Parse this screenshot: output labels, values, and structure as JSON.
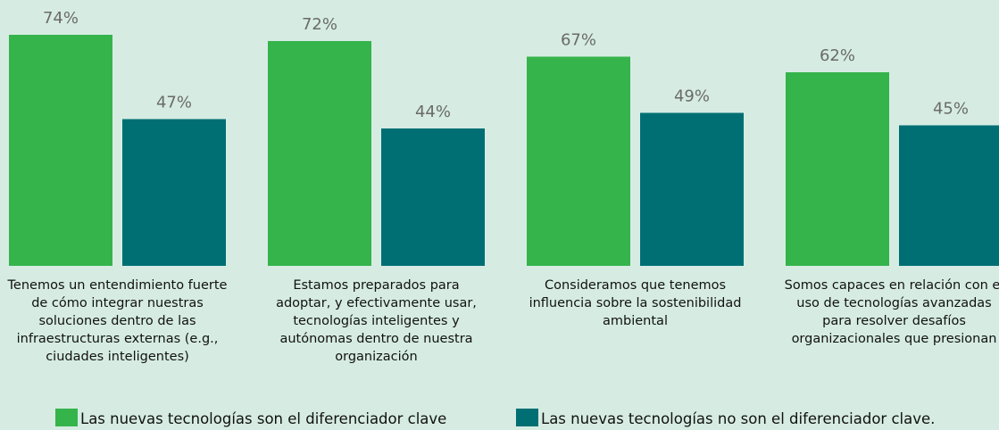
{
  "chart_data": {
    "type": "bar",
    "categories": [
      "Tenemos un entendimiento fuerte de cómo integrar nuestras soluciones dentro de las infraestructuras externas (e.g., ciudades inteligentes)",
      "Estamos preparados para adoptar, y efectivamente usar, tecnologías inteligentes y autónomas dentro de nuestra organización",
      "Consideramos que tenemos influencia sobre la sostenibilidad ambiental",
      "Somos capaces en relación con el uso de tecnologías avanzadas para resolver desafíos organizacionales que presionan"
    ],
    "series": [
      {
        "name": "Las nuevas tecnologías son el diferenciador clave",
        "color": "#35b44b",
        "values": [
          74,
          72,
          67,
          62
        ],
        "value_labels": [
          "74%",
          "72%",
          "67%",
          "62%"
        ]
      },
      {
        "name": "Las nuevas tecnologías no son el diferenciador clave.",
        "color": "#006f74",
        "values": [
          47,
          44,
          49,
          45
        ],
        "value_labels": [
          "47%",
          "44%",
          "49%",
          "45%"
        ]
      }
    ],
    "legend": "bottom"
  }
}
